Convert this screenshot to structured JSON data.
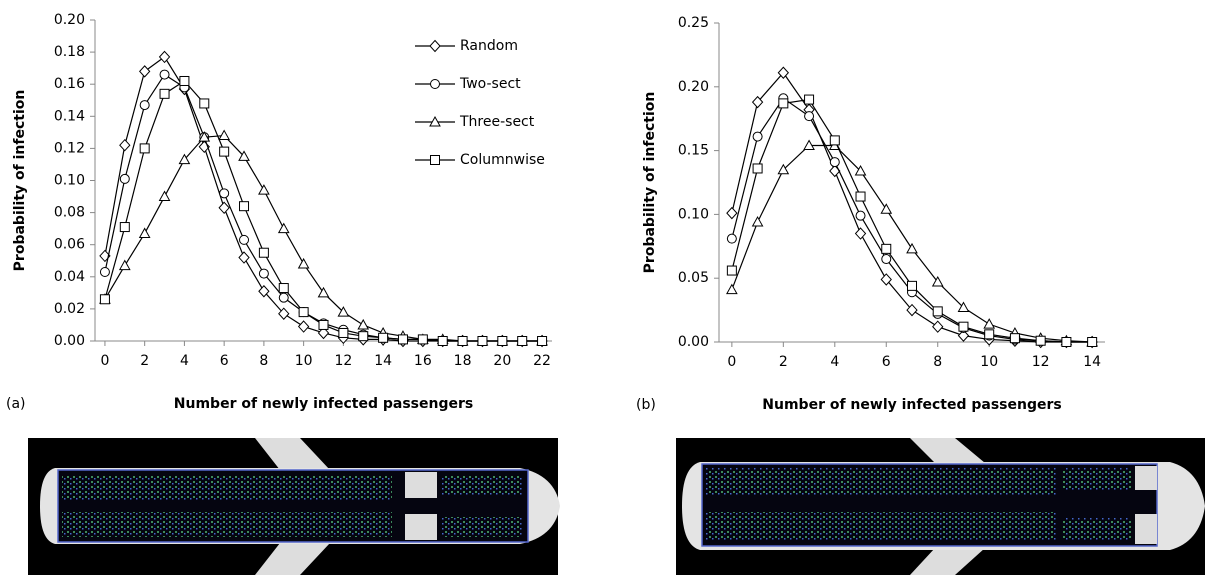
{
  "chart_data": [
    {
      "type": "line",
      "label": "(a)",
      "x_label": "Number of newly infected passengers",
      "y_label": "Probability of infection",
      "x": [
        0,
        1,
        2,
        3,
        4,
        5,
        6,
        7,
        8,
        9,
        10,
        11,
        12,
        13,
        14,
        15,
        16,
        17,
        18,
        19,
        20,
        21,
        22
      ],
      "xlim": [
        -0.5,
        22.5
      ],
      "xticks": [
        0,
        2,
        4,
        6,
        8,
        10,
        12,
        14,
        16,
        18,
        20,
        22
      ],
      "ylim": [
        0,
        0.2
      ],
      "yticks": [
        {
          "value": 0,
          "label": "0.00"
        },
        {
          "value": 0.02,
          "label": "0.02"
        },
        {
          "value": 0.04,
          "label": "0.04"
        },
        {
          "value": 0.06,
          "label": "0.06"
        },
        {
          "value": 0.08,
          "label": "0.08"
        },
        {
          "value": 0.1,
          "label": "0.10"
        },
        {
          "value": 0.12,
          "label": "0.12"
        },
        {
          "value": 0.14,
          "label": "0.14"
        },
        {
          "value": 0.16,
          "label": "0.16"
        },
        {
          "value": 0.18,
          "label": "0.18"
        },
        {
          "value": 0.2,
          "label": "0.20"
        }
      ],
      "legend": "upper right",
      "series": [
        {
          "name": "Random",
          "marker": "diamond",
          "color": "#000000",
          "values": [
            0.053,
            0.122,
            0.168,
            0.177,
            0.157,
            0.121,
            0.083,
            0.052,
            0.031,
            0.017,
            0.009,
            0.005,
            0.002,
            0.001,
            0.001,
            0,
            0,
            0,
            0,
            0,
            0,
            0,
            0
          ]
        },
        {
          "name": "Two-sect",
          "marker": "circle",
          "color": "#000000",
          "values": [
            0.043,
            0.101,
            0.147,
            0.166,
            0.158,
            0.127,
            0.092,
            0.063,
            0.042,
            0.027,
            0.018,
            0.011,
            0.007,
            0.004,
            0.002,
            0.001,
            0.001,
            0,
            0,
            0,
            0,
            0,
            0
          ]
        },
        {
          "name": "Three-sect",
          "marker": "triangle",
          "color": "#000000",
          "values": [
            0.026,
            0.047,
            0.067,
            0.09,
            0.113,
            0.127,
            0.128,
            0.115,
            0.094,
            0.07,
            0.048,
            0.03,
            0.018,
            0.01,
            0.005,
            0.003,
            0.001,
            0.001,
            0,
            0,
            0,
            0,
            0
          ]
        },
        {
          "name": "Columnwise",
          "marker": "square",
          "color": "#000000",
          "values": [
            0.026,
            0.071,
            0.12,
            0.154,
            0.162,
            0.148,
            0.118,
            0.084,
            0.055,
            0.033,
            0.018,
            0.01,
            0.005,
            0.003,
            0.002,
            0.001,
            0.001,
            0,
            0,
            0,
            0,
            0,
            0
          ]
        }
      ]
    },
    {
      "type": "line",
      "label": "(b)",
      "x_label": "Number of newly infected passengers",
      "y_label": "Probability of infection",
      "x": [
        0,
        1,
        2,
        3,
        4,
        5,
        6,
        7,
        8,
        9,
        10,
        11,
        12,
        13,
        14
      ],
      "xlim": [
        -0.5,
        14.5
      ],
      "xticks": [
        0,
        2,
        4,
        6,
        8,
        10,
        12,
        14
      ],
      "ylim": [
        0,
        0.25
      ],
      "yticks": [
        {
          "value": 0,
          "label": "0.00"
        },
        {
          "value": 0.05,
          "label": "0.05"
        },
        {
          "value": 0.1,
          "label": "0.10"
        },
        {
          "value": 0.15,
          "label": "0.15"
        },
        {
          "value": 0.2,
          "label": "0.20"
        },
        {
          "value": 0.25,
          "label": "0.25"
        }
      ],
      "series": [
        {
          "marker": "diamond",
          "color": "#000000",
          "values": [
            0.101,
            0.188,
            0.211,
            0.182,
            0.134,
            0.085,
            0.049,
            0.025,
            0.012,
            0.005,
            0.002,
            0.001,
            0,
            0,
            0
          ]
        },
        {
          "marker": "circle",
          "color": "#000000",
          "values": [
            0.081,
            0.161,
            0.191,
            0.177,
            0.141,
            0.099,
            0.065,
            0.039,
            0.022,
            0.011,
            0.005,
            0.002,
            0.001,
            0,
            0
          ]
        },
        {
          "marker": "triangle",
          "color": "#000000",
          "values": [
            0.041,
            0.094,
            0.135,
            0.154,
            0.154,
            0.134,
            0.104,
            0.073,
            0.047,
            0.027,
            0.014,
            0.007,
            0.003,
            0.001,
            0
          ]
        },
        {
          "marker": "square",
          "color": "#000000",
          "values": [
            0.056,
            0.136,
            0.187,
            0.19,
            0.158,
            0.114,
            0.073,
            0.044,
            0.024,
            0.012,
            0.006,
            0.003,
            0.001,
            0,
            0
          ]
        }
      ]
    }
  ]
}
